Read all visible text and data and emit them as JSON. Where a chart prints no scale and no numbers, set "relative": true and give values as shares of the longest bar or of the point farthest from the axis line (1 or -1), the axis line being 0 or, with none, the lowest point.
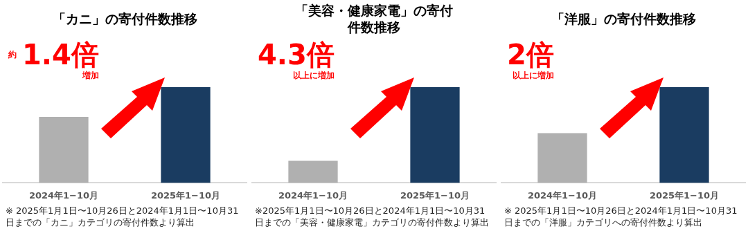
{
  "chart_data": [
    {
      "type": "bar",
      "title": "「カニ」の寄付件数推移",
      "categories": [
        "2024年1−10月",
        "2025年1−10月"
      ],
      "values": [
        0.69,
        1
      ],
      "colors": [
        "#b0b0b0",
        "#1a3c61"
      ],
      "relative": true,
      "annotations": [
        "約",
        "1.4倍",
        "増加",
        "※ 2025年1月1日〜10月26日と2024年1月1日〜10月31日までの「カニ」カテゴリの寄付件数より算出"
      ]
    },
    {
      "type": "bar",
      "title": "「美容・健康家電」の寄付件数推移",
      "categories": [
        "2024年1−10月",
        "2025年1−10月"
      ],
      "values": [
        0.23,
        1
      ],
      "colors": [
        "#b0b0b0",
        "#1a3c61"
      ],
      "relative": true,
      "annotations": [
        "4.3倍",
        "以上に増加",
        "※2025年1月1日〜10月26日と2024年1月1日〜10月31日までの「美容・健康家電」カテゴリの寄付件数より算出"
      ]
    },
    {
      "type": "bar",
      "title": "「洋服」の寄付件数推移",
      "categories": [
        "2024年1−10月",
        "2025年1−10月"
      ],
      "values": [
        0.52,
        1
      ],
      "colors": [
        "#b0b0b0",
        "#1a3c61"
      ],
      "relative": true,
      "annotations": [
        "2倍",
        "以上に増加",
        "※ 2025年1月1日〜10月26日と2024年1月1日〜10月31日までの「洋服」カテゴリへの寄付件数より算出"
      ]
    }
  ]
}
